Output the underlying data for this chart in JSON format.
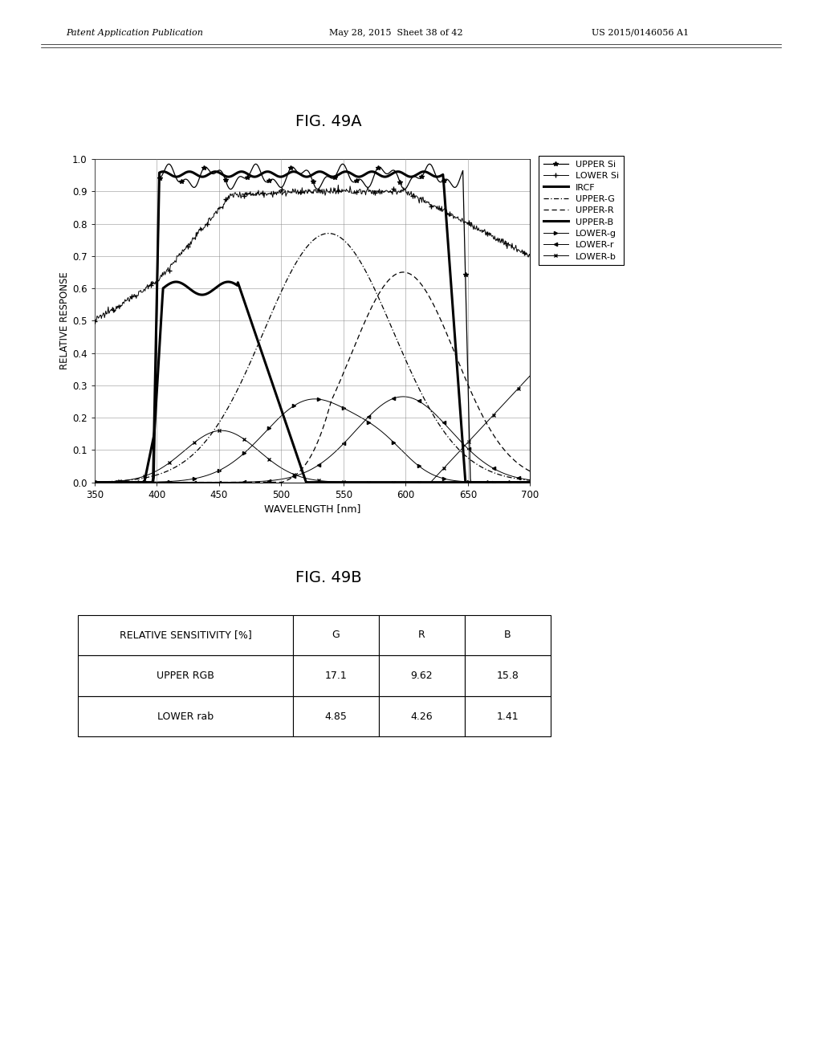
{
  "fig_title_a": "FIG. 49A",
  "fig_title_b": "FIG. 49B",
  "header_left": "Patent Application Publication",
  "header_mid": "May 28, 2015  Sheet 38 of 42",
  "header_right": "US 2015/0146056 A1",
  "xlabel": "WAVELENGTH [nm]",
  "ylabel": "RELATIVE RESPONSE",
  "xlim": [
    350,
    700
  ],
  "ylim": [
    0,
    1
  ],
  "xticks": [
    350,
    400,
    450,
    500,
    550,
    600,
    650,
    700
  ],
  "yticks": [
    0,
    0.1,
    0.2,
    0.3,
    0.4,
    0.5,
    0.6,
    0.7,
    0.8,
    0.9,
    1
  ],
  "legend_entries": [
    "UPPER Si",
    "LOWER Si",
    "IRCF",
    "UPPER-G",
    "UPPER-R",
    "UPPER-B",
    "LOWER-g",
    "LOWER-r",
    "LOWER-b"
  ],
  "table_header": [
    "RELATIVE SENSITIVITY [%]",
    "G",
    "R",
    "B"
  ],
  "table_data": [
    [
      "UPPER RGB",
      "17.1",
      "9.62",
      "15.8"
    ],
    [
      "LOWER rab",
      "4.85",
      "4.26",
      "1.41"
    ]
  ]
}
